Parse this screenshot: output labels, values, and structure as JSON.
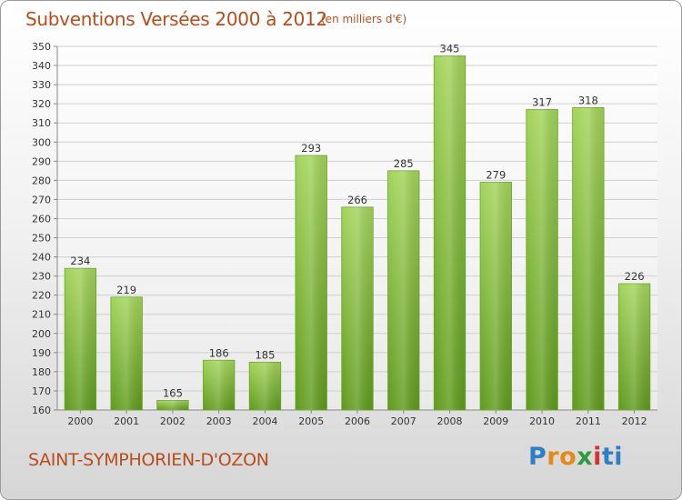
{
  "chart_data": {
    "type": "bar",
    "title": "Subventions Versées 2000 à 2012",
    "unit_note": "(en milliers d'€)",
    "categories": [
      "2000",
      "2001",
      "2002",
      "2003",
      "2004",
      "2005",
      "2006",
      "2007",
      "2008",
      "2009",
      "2010",
      "2011",
      "2012"
    ],
    "values": [
      234,
      219,
      165,
      186,
      185,
      293,
      266,
      285,
      345,
      279,
      317,
      318,
      226
    ],
    "ylim": [
      160,
      350
    ],
    "yticks": [
      160,
      170,
      180,
      190,
      200,
      210,
      220,
      230,
      240,
      250,
      260,
      270,
      280,
      290,
      300,
      310,
      320,
      330,
      340,
      350
    ],
    "grid": true,
    "bar_color": "#7ab534",
    "xlabel": "",
    "ylabel": ""
  },
  "commune": "SAINT-SYMPHORIEN-D'OZON",
  "logo": {
    "text": "Proxiti",
    "letters": [
      "P",
      "r",
      "o",
      "x",
      "i",
      "ti"
    ],
    "colors": {
      "blue": "#2e7fc4",
      "orange": "#e58a16",
      "green": "#2e9c3a",
      "red": "#d8332a"
    }
  },
  "colors": {
    "title": "#b84d1c",
    "bar_light": "#a2d45a",
    "bar_dark": "#5f9a1c"
  }
}
